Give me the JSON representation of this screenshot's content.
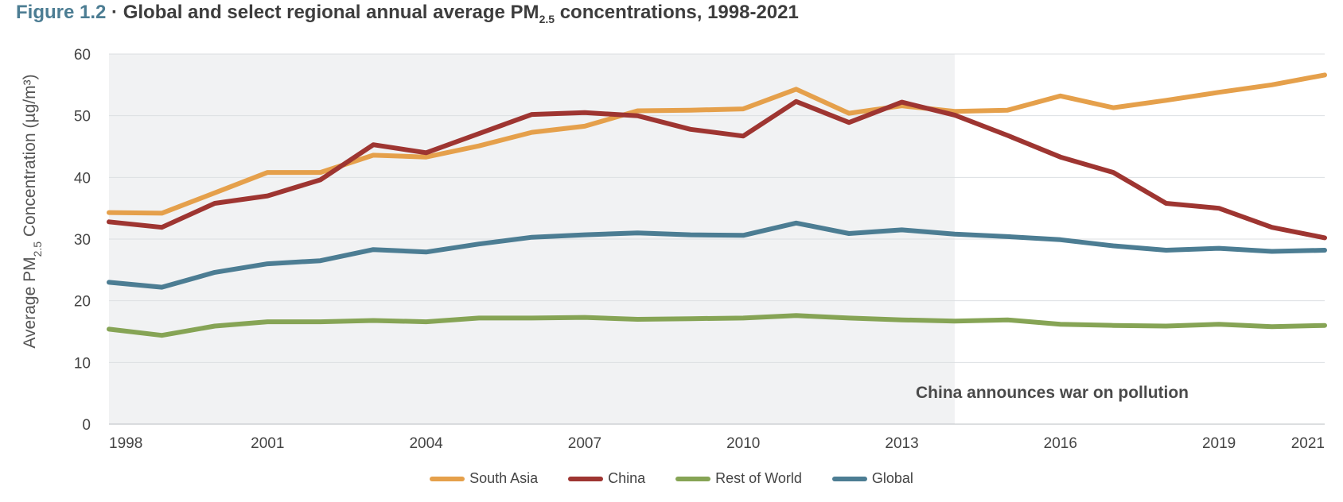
{
  "title": {
    "figure": "Figure 1.2",
    "separator": "·",
    "text_before": "Global and select regional annual average PM",
    "subscript": "2.5",
    "text_after": " concentrations, 1998-2021"
  },
  "chart_data": {
    "type": "line",
    "x": [
      1998,
      1999,
      2000,
      2001,
      2002,
      2003,
      2004,
      2005,
      2006,
      2007,
      2008,
      2009,
      2010,
      2011,
      2012,
      2013,
      2014,
      2015,
      2016,
      2017,
      2018,
      2019,
      2020,
      2021
    ],
    "xticks": [
      "1998",
      "2001",
      "2004",
      "2007",
      "2010",
      "2013",
      "2016",
      "2019",
      "2021"
    ],
    "ylim": [
      0,
      60
    ],
    "yticks": [
      "0",
      "10",
      "20",
      "30",
      "40",
      "50",
      "60"
    ],
    "ylabel_pre": "Average PM",
    "ylabel_sub": "2.5",
    "ylabel_post": "  Concentration  (µg/m³)",
    "grid": true,
    "legend_position": "bottom-center",
    "shaded_region": {
      "from": 1998,
      "to": 2014
    },
    "annotation": "China announces war on pollution",
    "series": [
      {
        "name": "South Asia",
        "color": "#e5a04b",
        "values": [
          34.3,
          34.2,
          37.5,
          40.8,
          40.8,
          43.6,
          43.3,
          45.1,
          47.3,
          48.3,
          50.8,
          50.9,
          51.1,
          54.3,
          50.4,
          51.6,
          50.7,
          50.9,
          53.2,
          51.3,
          52.5,
          53.8,
          55.0,
          56.6
        ]
      },
      {
        "name": "China",
        "color": "#9e3531",
        "values": [
          32.8,
          31.9,
          35.8,
          37.0,
          39.6,
          45.3,
          44.0,
          47.1,
          50.2,
          50.5,
          50.0,
          47.8,
          46.7,
          52.3,
          48.9,
          52.2,
          50.1,
          46.8,
          43.3,
          40.8,
          35.8,
          35.0,
          31.9,
          30.2
        ]
      },
      {
        "name": "Rest of World",
        "color": "#86a455",
        "values": [
          15.4,
          14.4,
          15.9,
          16.6,
          16.6,
          16.8,
          16.6,
          17.2,
          17.2,
          17.3,
          17.0,
          17.1,
          17.2,
          17.6,
          17.2,
          16.9,
          16.7,
          16.9,
          16.2,
          16.0,
          15.9,
          16.2,
          15.8,
          16.0
        ]
      },
      {
        "name": "Global",
        "color": "#4c7d93",
        "values": [
          23.0,
          22.2,
          24.6,
          26.0,
          26.5,
          28.3,
          27.9,
          29.2,
          30.3,
          30.7,
          31.0,
          30.7,
          30.6,
          32.6,
          30.9,
          31.5,
          30.8,
          30.4,
          29.9,
          28.9,
          28.2,
          28.5,
          28.0,
          28.2
        ]
      }
    ]
  }
}
